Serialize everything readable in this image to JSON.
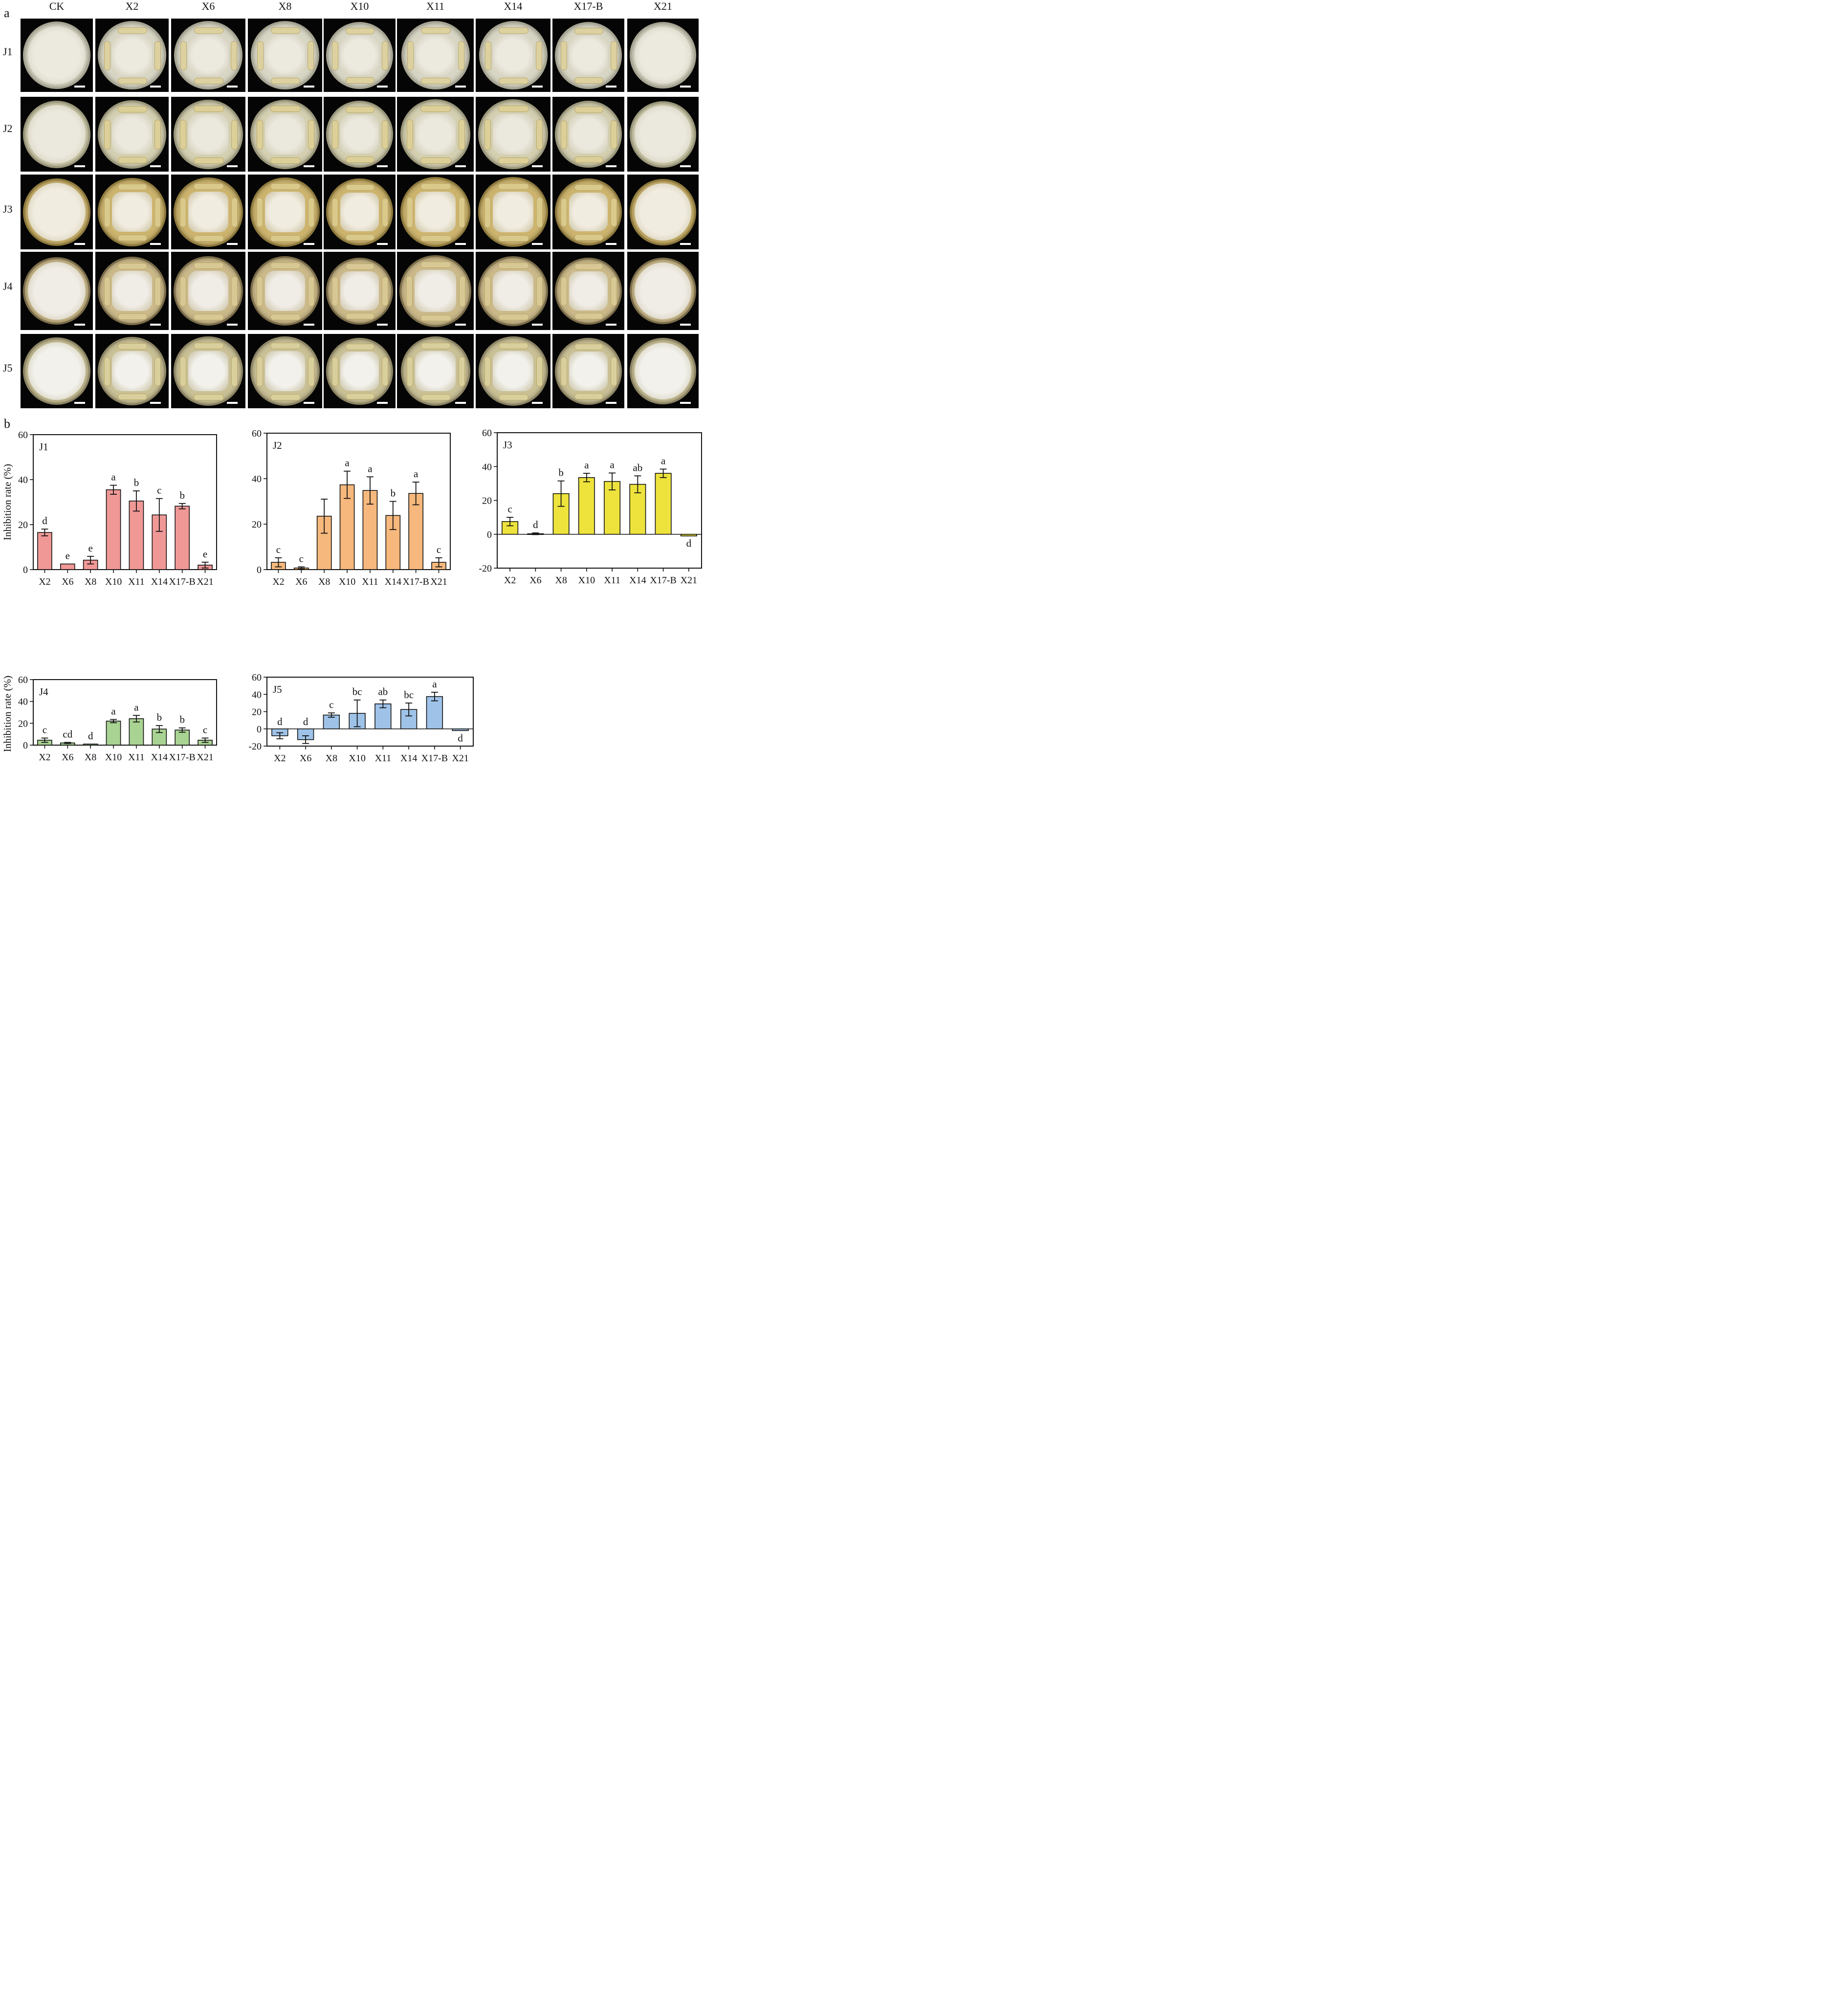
{
  "figure": {
    "panel_a_letter": "a",
    "panel_b_letter": "b",
    "columns": [
      "CK",
      "X2",
      "X6",
      "X8",
      "X10",
      "X11",
      "X14",
      "X17-B",
      "X21"
    ],
    "rows": [
      "J1",
      "J2",
      "J3",
      "J4",
      "J5"
    ],
    "scale_bar_color": "#ffffff"
  },
  "chart_data": [
    {
      "type": "bar",
      "title": "J1",
      "xlabel": "",
      "ylabel": "Inhibition rate (%)",
      "categories": [
        "X2",
        "X6",
        "X8",
        "X10",
        "X11",
        "X14",
        "X17-B",
        "X21"
      ],
      "values": [
        16.5,
        2.5,
        4.2,
        35.5,
        30.5,
        24.3,
        28.2,
        2.0
      ],
      "errors": [
        1.5,
        0,
        1.7,
        2.0,
        4.5,
        7.3,
        1.2,
        1.3
      ],
      "letters": [
        "d",
        "e",
        "e",
        "a",
        "b",
        "c",
        "b",
        "e"
      ],
      "ylim": [
        0,
        60
      ],
      "yticks": [
        0,
        20,
        40,
        60
      ],
      "color": "#f09896"
    },
    {
      "type": "bar",
      "title": "J2",
      "xlabel": "",
      "ylabel": "",
      "categories": [
        "X2",
        "X6",
        "X8",
        "X10",
        "X11",
        "X14",
        "X17-B",
        "X21"
      ],
      "values": [
        3.2,
        0.7,
        23.5,
        37.3,
        34.8,
        23.8,
        33.5,
        3.2
      ],
      "errors": [
        2.0,
        0.5,
        7.5,
        6.0,
        6.0,
        6.2,
        5.0,
        2.0
      ],
      "letters": [
        "c",
        "c",
        "",
        "a",
        "a",
        "b",
        "a",
        "c"
      ],
      "ylim": [
        0,
        60
      ],
      "yticks": [
        0,
        20,
        40,
        60
      ],
      "color": "#f6b87c"
    },
    {
      "type": "bar",
      "title": "J3",
      "xlabel": "",
      "ylabel": "",
      "categories": [
        "X2",
        "X6",
        "X8",
        "X10",
        "X11",
        "X14",
        "X17-B",
        "X21"
      ],
      "values": [
        7.5,
        0.3,
        24.0,
        33.5,
        31.2,
        29.5,
        36.0,
        -1.0
      ],
      "errors": [
        2.5,
        0.5,
        7.5,
        2.5,
        5.0,
        5.0,
        2.5,
        0
      ],
      "letters": [
        "c",
        "d",
        "b",
        "a",
        "a",
        "ab",
        "a",
        "d"
      ],
      "ylim": [
        -20,
        60
      ],
      "yticks": [
        -20,
        0,
        20,
        40,
        60
      ],
      "color": "#ede33c"
    },
    {
      "type": "bar",
      "title": "J4",
      "xlabel": "",
      "ylabel": "Inhibition rate (%)",
      "categories": [
        "X2",
        "X6",
        "X8",
        "X10",
        "X11",
        "X14",
        "X17-B",
        "X21"
      ],
      "values": [
        4.5,
        2.0,
        1.0,
        22.0,
        24.2,
        14.7,
        13.8,
        4.5
      ],
      "errors": [
        2.0,
        0.5,
        0,
        1.5,
        3.0,
        3.2,
        2.0,
        2.0
      ],
      "letters": [
        "c",
        "cd",
        "d",
        "a",
        "a",
        "b",
        "b",
        "c"
      ],
      "ylim": [
        0,
        60
      ],
      "yticks": [
        0,
        20,
        40,
        60
      ],
      "color": "#a9d392"
    },
    {
      "type": "bar",
      "title": "J5",
      "xlabel": "",
      "ylabel": "",
      "categories": [
        "X2",
        "X6",
        "X8",
        "X10",
        "X11",
        "X14",
        "X17-B",
        "X21"
      ],
      "values": [
        -8.0,
        -12.5,
        16.0,
        18.0,
        29.0,
        22.5,
        37.5,
        -2.0
      ],
      "errors": [
        3.5,
        4.5,
        2.5,
        15.5,
        4.5,
        7.5,
        5.0,
        0
      ],
      "letters": [
        "d",
        "d",
        "c",
        "bc",
        "ab",
        "bc",
        "a",
        "d"
      ],
      "ylim": [
        -20,
        60
      ],
      "yticks": [
        -20,
        0,
        20,
        40,
        60
      ],
      "color": "#9fc3e8"
    }
  ]
}
